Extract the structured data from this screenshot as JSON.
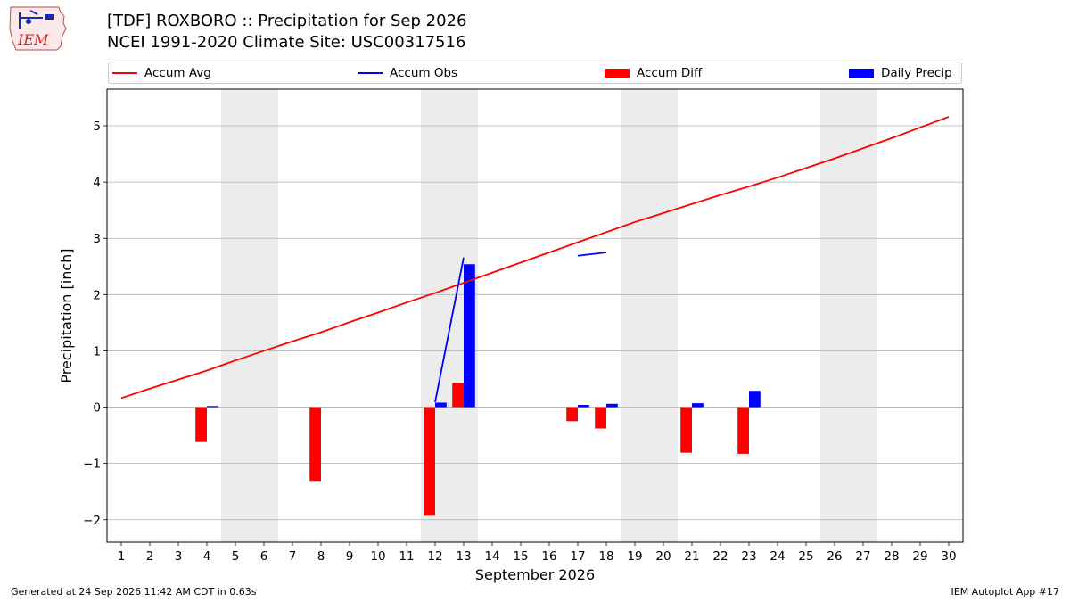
{
  "header": {
    "title_line1": "[TDF] ROXBORO :: Precipitation for Sep 2026",
    "title_line2": "NCEI 1991-2020 Climate Site: USC00317516"
  },
  "logo": {
    "text": "IEM",
    "icon": "iem-logo-icon"
  },
  "legend": {
    "items": [
      {
        "label": "Accum Avg",
        "color": "#ff0000",
        "kind": "line"
      },
      {
        "label": "Accum Obs",
        "color": "#0000ff",
        "kind": "line"
      },
      {
        "label": "Accum Diff",
        "color": "#ff0000",
        "kind": "box"
      },
      {
        "label": "Daily Precip",
        "color": "#0000ff",
        "kind": "box"
      }
    ]
  },
  "footer": {
    "left": "Generated at 24 Sep 2026 11:42 AM CDT in 0.63s",
    "right": "IEM Autoplot App #17"
  },
  "chart_data": {
    "type": "bar",
    "xlabel": "September 2026",
    "ylabel": "Precipitation [inch]",
    "xlim": [
      0.5,
      30.5
    ],
    "ylim": [
      -2.4,
      5.65
    ],
    "x_ticks": [
      1,
      2,
      3,
      4,
      5,
      6,
      7,
      8,
      9,
      10,
      11,
      12,
      13,
      14,
      15,
      16,
      17,
      18,
      19,
      20,
      21,
      22,
      23,
      24,
      25,
      26,
      27,
      28,
      29,
      30
    ],
    "y_ticks": [
      -2,
      -1,
      0,
      1,
      2,
      3,
      4,
      5
    ],
    "y_tick_labels": [
      "−2",
      "−1",
      "0",
      "1",
      "2",
      "3",
      "4",
      "5"
    ],
    "grid": "horizontal",
    "weekend_shading": [
      [
        4.5,
        6.5
      ],
      [
        11.5,
        13.5
      ],
      [
        18.5,
        20.5
      ],
      [
        25.5,
        27.5
      ]
    ],
    "shade_color": "#ececec",
    "series": [
      {
        "name": "Accum Avg",
        "kind": "line",
        "color": "#ff0000",
        "x": [
          1,
          2,
          3,
          4,
          5,
          6,
          7,
          8,
          9,
          10,
          11,
          12,
          13,
          14,
          15,
          16,
          17,
          18,
          19,
          20,
          21,
          22,
          23,
          24,
          25,
          26,
          27,
          28,
          29,
          30
        ],
        "values": [
          0.16,
          0.33,
          0.49,
          0.65,
          0.83,
          1.0,
          1.17,
          1.33,
          1.51,
          1.68,
          1.86,
          2.03,
          2.21,
          2.39,
          2.57,
          2.75,
          2.93,
          3.11,
          3.29,
          3.45,
          3.61,
          3.77,
          3.92,
          4.08,
          4.25,
          4.42,
          4.6,
          4.78,
          4.97,
          5.16
        ]
      },
      {
        "name": "Accum Obs",
        "kind": "line",
        "color": "#0000ff",
        "segments": [
          {
            "x": [
              12,
              13
            ],
            "values": [
              0.09,
              2.66
            ]
          },
          {
            "x": [
              17,
              18
            ],
            "values": [
              2.69,
              2.75
            ]
          }
        ]
      },
      {
        "name": "Accum Diff",
        "kind": "bar",
        "color": "#ff0000",
        "offset": -0.2,
        "x": [
          4,
          8,
          12,
          13,
          17,
          18,
          21,
          23
        ],
        "values": [
          -0.62,
          -1.31,
          -1.93,
          0.43,
          -0.25,
          -0.38,
          -0.81,
          -0.83
        ]
      },
      {
        "name": "Daily Precip",
        "kind": "bar",
        "color": "#0000ff",
        "offset": 0.2,
        "x": [
          4,
          12,
          13,
          17,
          18,
          21,
          23
        ],
        "values": [
          0.02,
          0.08,
          2.54,
          0.04,
          0.06,
          0.07,
          0.29
        ]
      }
    ]
  }
}
